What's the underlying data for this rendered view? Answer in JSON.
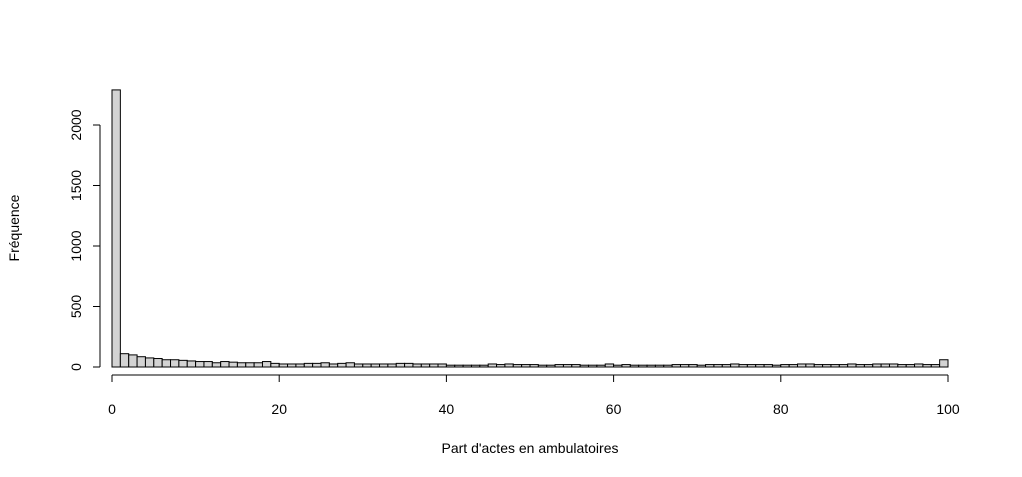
{
  "chart_data": {
    "type": "bar",
    "title": "",
    "xlabel": "Part d'actes en ambulatoires",
    "ylabel": "Fréquence",
    "xlim": [
      0,
      100
    ],
    "ylim": [
      0,
      2300
    ],
    "xticks": [
      0,
      20,
      40,
      60,
      80,
      100
    ],
    "yticks": [
      0,
      500,
      1000,
      1500,
      2000
    ],
    "grid": false,
    "bin_width": 1,
    "bin_start": 0,
    "values": [
      2290,
      110,
      100,
      85,
      75,
      70,
      60,
      60,
      55,
      50,
      45,
      45,
      35,
      45,
      40,
      35,
      35,
      35,
      45,
      30,
      25,
      25,
      25,
      30,
      30,
      35,
      25,
      30,
      35,
      25,
      25,
      25,
      25,
      25,
      30,
      30,
      25,
      25,
      25,
      25,
      15,
      15,
      15,
      15,
      15,
      25,
      20,
      25,
      20,
      20,
      20,
      15,
      15,
      20,
      20,
      20,
      15,
      15,
      15,
      25,
      15,
      20,
      15,
      15,
      15,
      15,
      15,
      20,
      20,
      20,
      15,
      20,
      20,
      20,
      25,
      20,
      20,
      20,
      20,
      15,
      20,
      20,
      25,
      25,
      20,
      20,
      20,
      20,
      25,
      20,
      20,
      25,
      25,
      25,
      20,
      20,
      25,
      20,
      20,
      60
    ]
  }
}
